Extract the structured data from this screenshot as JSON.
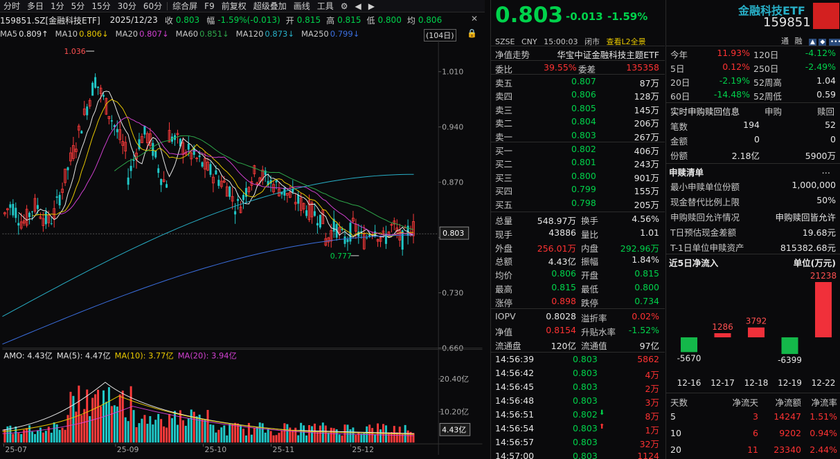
{
  "toolbar": {
    "items": [
      "分时",
      "多日",
      "1分",
      "5分",
      "15分",
      "30分",
      "60分",
      "综合屏",
      "F9",
      "前复权",
      "超级叠加",
      "画线",
      "工具"
    ]
  },
  "header": {
    "symbol": "159851.SZ[金融科技ETF]",
    "date": "2025/12/23",
    "close_label": "收",
    "close": "0.803",
    "chg_label": "幅",
    "chg": "-1.59%(-0.013)",
    "open_label": "开",
    "open": "0.815",
    "high_label": "高",
    "high": "0.815",
    "low_label": "低",
    "low": "0.800",
    "avg_label": "均",
    "avg": "0.806"
  },
  "ma_bar": [
    {
      "label": "MA5",
      "value": "0.809↑",
      "color": "#e8e8e8"
    },
    {
      "label": "MA10",
      "value": "0.806↓",
      "color": "#e8c800"
    },
    {
      "label": "MA20",
      "value": "0.807↓",
      "color": "#d040d0"
    },
    {
      "label": "MA60",
      "value": "0.851↓",
      "color": "#2ea84a"
    },
    {
      "label": "MA120",
      "value": "0.873↓",
      "color": "#28b0c8"
    },
    {
      "label": "MA250",
      "value": "0.799↓",
      "color": "#3b6fe0"
    }
  ],
  "period_badge": "(104日)",
  "price_axis": [
    "1.010",
    "0.940",
    "0.870",
    "0.800",
    "0.730",
    "0.660"
  ],
  "current_price_tag": "0.803",
  "high_mark": "1.036",
  "low_mark": "0.777",
  "vol_bar": {
    "amo": "AMO: 4.43亿",
    "ma5": "MA(5): 4.47亿",
    "ma10": "MA(10): 3.77亿",
    "ma20": "MA(20): 3.94亿"
  },
  "vol_axis": [
    "20.40亿",
    "10.20亿"
  ],
  "vol_tag": "4.43亿",
  "date_axis": [
    "25-07",
    "25-09",
    "25-10",
    "25-11",
    "25-12"
  ],
  "chart_data": {
    "type": "candlestick",
    "price_range": [
      0.66,
      1.05
    ],
    "x_labels": [
      "25-07",
      "25-09",
      "25-10",
      "25-11",
      "25-12"
    ],
    "last": 0.803,
    "high": 1.036,
    "low": 0.777
  },
  "quote": {
    "price": "0.803",
    "change": "-0.013",
    "pct": "-1.59%",
    "market": "SZSE",
    "currency": "CNY",
    "time": "15:00:03",
    "status": "闭市",
    "l2": "查看L2全景",
    "name": "金融科技ETF",
    "code": "159851",
    "tong": "通",
    "rong": "融"
  },
  "nav_trend": {
    "label": "净值走势",
    "fund": "华宝中证金融科技主题ETF"
  },
  "weibi": {
    "label1": "委比",
    "v1": "39.55%",
    "label2": "委差",
    "v2": "135358"
  },
  "asks": [
    {
      "l": "卖五",
      "p": "0.807",
      "v": "87万"
    },
    {
      "l": "卖四",
      "p": "0.806",
      "v": "128万"
    },
    {
      "l": "卖三",
      "p": "0.805",
      "v": "145万"
    },
    {
      "l": "卖二",
      "p": "0.804",
      "v": "206万"
    },
    {
      "l": "卖一",
      "p": "0.803",
      "v": "267万"
    }
  ],
  "bids": [
    {
      "l": "买一",
      "p": "0.802",
      "v": "406万"
    },
    {
      "l": "买二",
      "p": "0.801",
      "v": "243万"
    },
    {
      "l": "买三",
      "p": "0.800",
      "v": "901万"
    },
    {
      "l": "买四",
      "p": "0.799",
      "v": "155万"
    },
    {
      "l": "买五",
      "p": "0.798",
      "v": "205万"
    }
  ],
  "stats": [
    {
      "l1": "总量",
      "v1": "548.97万",
      "c1": "white",
      "l2": "换手",
      "v2": "4.56%",
      "c2": "white"
    },
    {
      "l1": "现手",
      "v1": "43886",
      "c1": "white",
      "l2": "量比",
      "v2": "1.01",
      "c2": "white"
    },
    {
      "l1": "外盘",
      "v1": "256.01万",
      "c1": "red",
      "l2": "内盘",
      "v2": "292.96万",
      "c2": "green"
    },
    {
      "l1": "总额",
      "v1": "4.43亿",
      "c1": "white",
      "l2": "振幅",
      "v2": "1.84%",
      "c2": "white"
    },
    {
      "l1": "均价",
      "v1": "0.806",
      "c1": "green",
      "l2": "开盘",
      "v2": "0.815",
      "c2": "green"
    },
    {
      "l1": "最高",
      "v1": "0.815",
      "c1": "green",
      "l2": "最低",
      "v2": "0.800",
      "c2": "green"
    },
    {
      "l1": "涨停",
      "v1": "0.898",
      "c1": "red",
      "l2": "跌停",
      "v2": "0.734",
      "c2": "green"
    }
  ],
  "iopv": [
    {
      "l1": "IOPV",
      "v1": "0.8028",
      "c1": "white",
      "l2": "溢折率",
      "v2": "0.02%",
      "c2": "red"
    },
    {
      "l1": "净值",
      "v1": "0.8154",
      "c1": "red",
      "l2": "升贴水率",
      "v2": "-1.52%",
      "c2": "green"
    },
    {
      "l1": "流通盘",
      "v1": "120亿",
      "c1": "white",
      "l2": "流通值",
      "v2": "97亿",
      "c2": "white"
    }
  ],
  "ticks": [
    {
      "t": "14:56:39",
      "p": "0.803",
      "v": "5862",
      "a": ""
    },
    {
      "t": "14:56:42",
      "p": "0.803",
      "v": "4万",
      "a": ""
    },
    {
      "t": "14:56:45",
      "p": "0.803",
      "v": "2万",
      "a": ""
    },
    {
      "t": "14:56:48",
      "p": "0.803",
      "v": "3万",
      "a": ""
    },
    {
      "t": "14:56:51",
      "p": "0.802",
      "v": "8万",
      "a": "down"
    },
    {
      "t": "14:56:54",
      "p": "0.803",
      "v": "1万",
      "a": "up"
    },
    {
      "t": "14:56:57",
      "p": "0.803",
      "v": "32万",
      "a": ""
    },
    {
      "t": "14:57:00",
      "p": "0.803",
      "v": "1124",
      "a": ""
    }
  ],
  "perf": [
    {
      "l1": "今年",
      "v1": "11.93%",
      "c1": "red",
      "l2": "120日",
      "v2": "-4.12%",
      "c2": "green"
    },
    {
      "l1": "5日",
      "v1": "0.12%",
      "c1": "red",
      "l2": "250日",
      "v2": "-2.49%",
      "c2": "green"
    },
    {
      "l1": "20日",
      "v1": "-2.19%",
      "c1": "green",
      "l2": "52周高",
      "v2": "1.04",
      "c2": "white"
    },
    {
      "l1": "60日",
      "v1": "-14.48%",
      "c1": "green",
      "l2": "52周低",
      "v2": "0.59",
      "c2": "white"
    }
  ],
  "subscribe": {
    "title": "实时申购赎回信息",
    "col1": "申购",
    "col2": "赎回",
    "rows": [
      {
        "l": "笔数",
        "a": "194",
        "b": "52"
      },
      {
        "l": "金额",
        "a": "0",
        "b": "0"
      },
      {
        "l": "份额",
        "a": "2.18亿",
        "b": "5900万"
      }
    ]
  },
  "list": {
    "title": "申赎清单",
    "rows": [
      {
        "l": "最小申赎单位份额",
        "v": "1,000,000"
      },
      {
        "l": "现金替代比例上限",
        "v": "50%"
      },
      {
        "l": "申购赎回允许情况",
        "v": "申购赎回皆允许"
      },
      {
        "l": "T日预估现金差额",
        "v": "19.68元"
      },
      {
        "l": "T-1日单位申赎资产",
        "v": "815382.68元"
      }
    ]
  },
  "inflow": {
    "title": "近5日净流入",
    "unit": "单位(万元)",
    "bars": [
      {
        "date": "12-16",
        "value": -5670
      },
      {
        "date": "12-17",
        "value": 1286
      },
      {
        "date": "12-18",
        "value": 3792
      },
      {
        "date": "12-19",
        "value": -6399
      },
      {
        "date": "12-22",
        "value": 21238
      }
    ]
  },
  "flow_table": {
    "headers": [
      "天数",
      "净流天",
      "净流额",
      "净流率"
    ],
    "rows": [
      {
        "d": "5",
        "n": "3",
        "amt": "14247",
        "rate": "1.51%"
      },
      {
        "d": "10",
        "n": "6",
        "amt": "9202",
        "rate": "0.94%"
      },
      {
        "d": "20",
        "n": "11",
        "amt": "23340",
        "rate": "2.44%"
      }
    ]
  }
}
